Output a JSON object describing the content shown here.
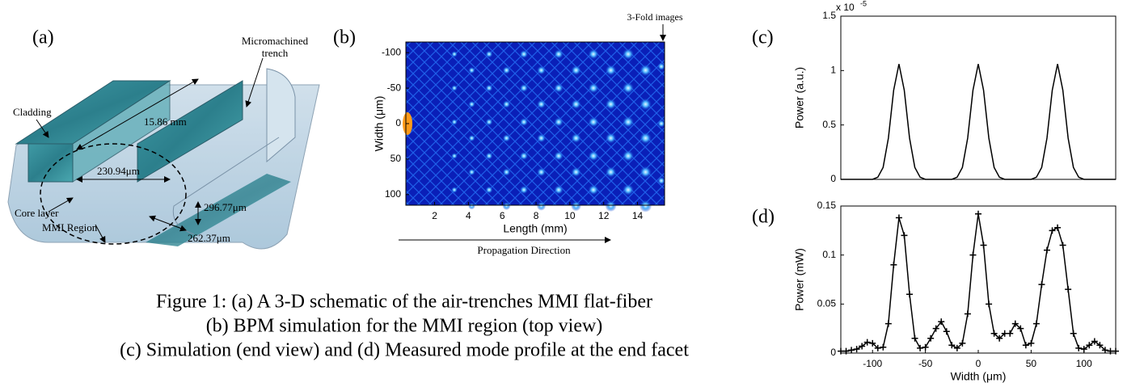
{
  "panel_a": {
    "label": "(a)",
    "annotations": [
      "Micromachined",
      "trench",
      "Cladding",
      "15.86 mm",
      "230.94μm",
      "296.77μm",
      "Core layer",
      "262.37μm",
      "MMI Region"
    ]
  },
  "caption": [
    "Figure 1: (a) A 3-D schematic of the air-trenches MMI flat-fiber",
    "(b) BPM simulation for the MMI region (top view)",
    "(c) Simulation (end view) and (d) Measured mode profile at the end facet"
  ],
  "chart_data": [
    {
      "type": "heatmap",
      "label": "(b)",
      "annotation": "3-Fold images",
      "xlabel": "Length (mm)",
      "ylabel": "Width (μm)",
      "footnote": "Propagation Direction",
      "xlim": [
        0.3,
        15.6
      ],
      "ylim": [
        115,
        -115
      ],
      "xticks": [
        2,
        4,
        6,
        8,
        10,
        12,
        14
      ],
      "yticks": [
        -100,
        -50,
        0,
        50,
        100
      ]
    },
    {
      "type": "line",
      "label": "(c)",
      "ylabel": "Power (a.u.)",
      "y_multiplier": {
        "base": "x 10",
        "exponent": "-5"
      },
      "xlim": [
        -130,
        130
      ],
      "ylim": [
        0,
        1.5
      ],
      "yticks": [
        0,
        0.5,
        1,
        1.5
      ],
      "x": [
        -130,
        -125,
        -120,
        -115,
        -110,
        -105,
        -100,
        -95,
        -90,
        -85,
        -80,
        -75,
        -70,
        -65,
        -60,
        -55,
        -50,
        -45,
        -40,
        -35,
        -30,
        -25,
        -20,
        -15,
        -10,
        -5,
        0,
        5,
        10,
        15,
        20,
        25,
        30,
        35,
        40,
        45,
        50,
        55,
        60,
        65,
        70,
        75,
        80,
        85,
        90,
        95,
        100,
        105,
        110,
        115,
        120,
        125,
        130
      ],
      "color": "#000000",
      "values": [
        0,
        0,
        0,
        0,
        0,
        0,
        0,
        0.02,
        0.11,
        0.38,
        0.82,
        1.06,
        0.82,
        0.38,
        0.11,
        0.02,
        0,
        0,
        0,
        0,
        0,
        0,
        0.02,
        0.11,
        0.38,
        0.82,
        1.06,
        0.82,
        0.38,
        0.11,
        0.02,
        0,
        0,
        0,
        0,
        0,
        0,
        0.02,
        0.11,
        0.38,
        0.82,
        1.06,
        0.82,
        0.38,
        0.11,
        0.02,
        0,
        0,
        0,
        0,
        0,
        0,
        0
      ]
    },
    {
      "type": "line-marker",
      "label": "(d)",
      "xlabel": "Width (μm)",
      "ylabel": "Power (mW)",
      "xlim": [
        -130,
        130
      ],
      "ylim": [
        0,
        0.15
      ],
      "xticks": [
        -100,
        -50,
        0,
        50,
        100
      ],
      "yticks": [
        0,
        0.05,
        0.1,
        0.15
      ],
      "x": [
        -130,
        -125,
        -120,
        -115,
        -110,
        -105,
        -100,
        -95,
        -90,
        -85,
        -80,
        -75,
        -70,
        -65,
        -60,
        -55,
        -50,
        -45,
        -40,
        -35,
        -30,
        -25,
        -20,
        -15,
        -10,
        -5,
        0,
        5,
        10,
        15,
        20,
        25,
        30,
        35,
        40,
        45,
        50,
        55,
        60,
        65,
        70,
        75,
        80,
        85,
        90,
        95,
        100,
        105,
        110,
        115,
        120,
        125,
        130
      ],
      "color": "#000000",
      "values": [
        0.002,
        0.002,
        0.003,
        0.004,
        0.007,
        0.011,
        0.01,
        0.005,
        0.006,
        0.03,
        0.09,
        0.138,
        0.12,
        0.06,
        0.015,
        0.005,
        0.006,
        0.015,
        0.025,
        0.032,
        0.022,
        0.008,
        0.005,
        0.01,
        0.04,
        0.1,
        0.142,
        0.11,
        0.05,
        0.02,
        0.015,
        0.02,
        0.02,
        0.03,
        0.025,
        0.008,
        0.01,
        0.03,
        0.07,
        0.105,
        0.125,
        0.128,
        0.11,
        0.065,
        0.02,
        0.005,
        0.004,
        0.008,
        0.012,
        0.008,
        0.003,
        0.002,
        0.002
      ]
    }
  ]
}
